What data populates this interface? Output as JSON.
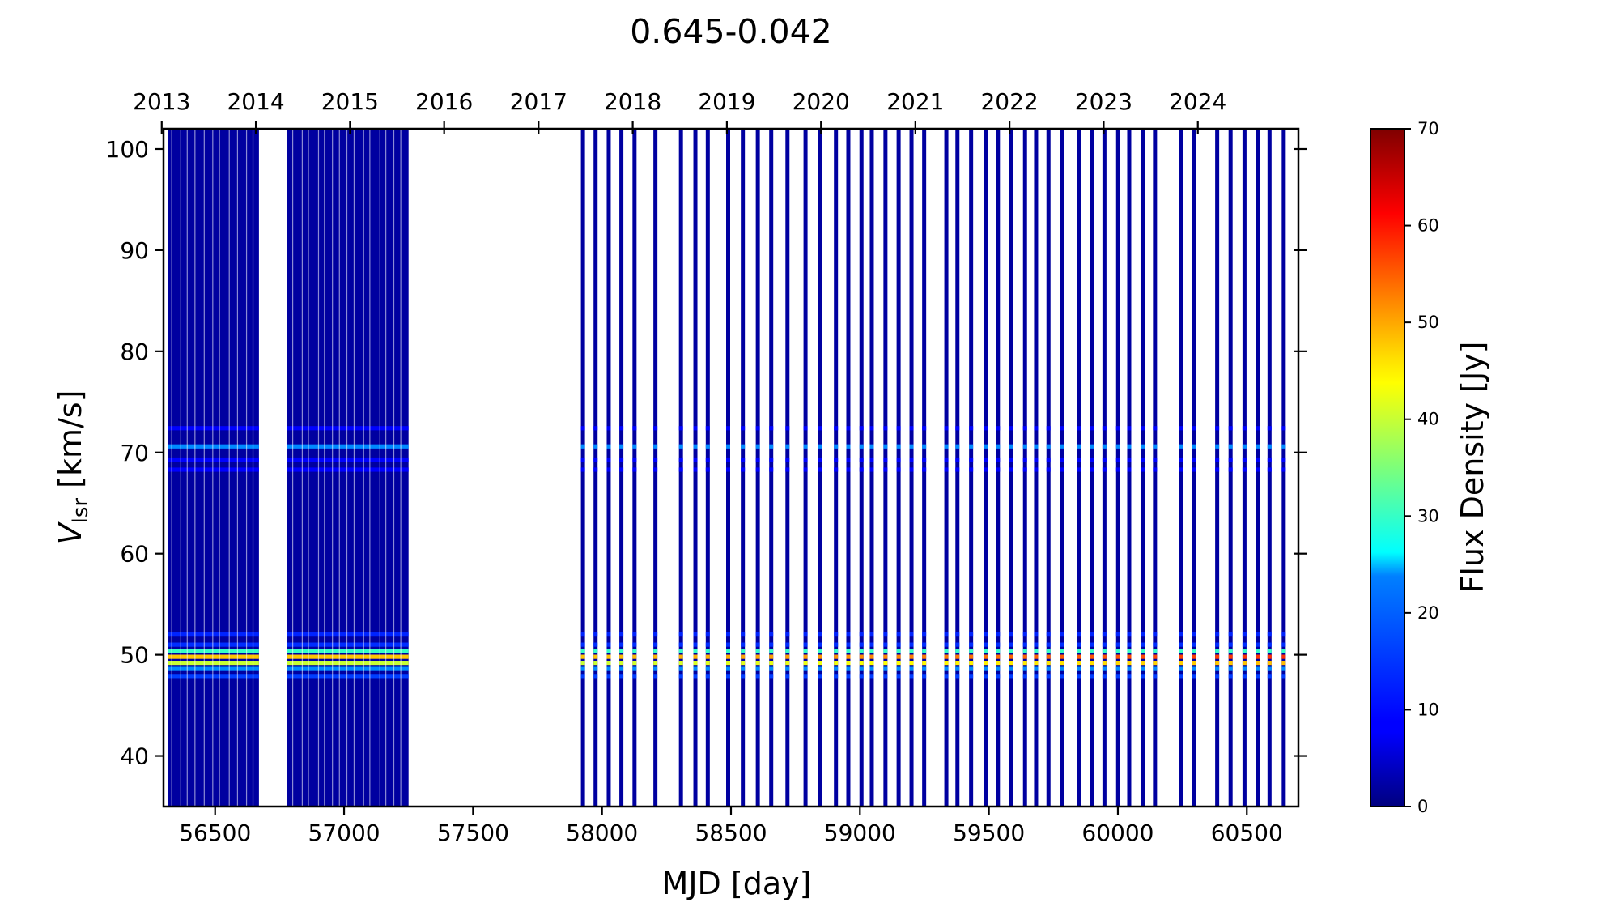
{
  "chart_data": {
    "type": "heatmap",
    "title": "0.645-0.042",
    "xlabel": "MJD [day]",
    "ylabel_main": "V",
    "ylabel_sub": "lsr",
    "ylabel_unit": " [km/s]",
    "colorbar_label": "Flux Density [Jy]",
    "colormap": "jet",
    "xlim": [
      56300,
      60700
    ],
    "ylim": [
      35,
      102
    ],
    "clim": [
      0,
      70
    ],
    "x_ticks": [
      56500,
      57000,
      57500,
      58000,
      58500,
      59000,
      59500,
      60000,
      60500
    ],
    "y_ticks": [
      40,
      50,
      60,
      70,
      80,
      90,
      100
    ],
    "colorbar_ticks": [
      0,
      10,
      20,
      30,
      40,
      50,
      60,
      70
    ],
    "top_axis": {
      "labels": [
        "2013",
        "2014",
        "2015",
        "2016",
        "2017",
        "2018",
        "2019",
        "2020",
        "2021",
        "2022",
        "2023",
        "2024"
      ],
      "mjd": [
        56293,
        56658,
        57023,
        57388,
        57754,
        58119,
        58484,
        58849,
        59215,
        59580,
        59945,
        60310
      ]
    },
    "dense_blocks": [
      {
        "start": 56318,
        "end": 56670
      },
      {
        "start": 56780,
        "end": 57250
      }
    ],
    "observation_epochs": [
      57926,
      57975,
      58026,
      58075,
      58126,
      58207,
      58306,
      58362,
      58410,
      58489,
      58546,
      58604,
      58656,
      58719,
      58789,
      58845,
      58907,
      58955,
      59006,
      59046,
      59099,
      59150,
      59200,
      59249,
      59335,
      59378,
      59431,
      59487,
      59535,
      59586,
      59640,
      59683,
      59731,
      59785,
      59849,
      59900,
      59948,
      60001,
      60044,
      60098,
      60144,
      60245,
      60296,
      60385,
      60437,
      60491,
      60542,
      60588,
      60643
    ],
    "spectral_features": [
      {
        "velocity": 47.9,
        "flux": 16
      },
      {
        "velocity": 48.6,
        "flux": 24
      },
      {
        "velocity": 49.2,
        "flux": 40
      },
      {
        "velocity": 49.8,
        "flux": 48
      },
      {
        "velocity": 50.4,
        "flux": 30
      },
      {
        "velocity": 51.0,
        "flux": 14
      },
      {
        "velocity": 52.0,
        "flux": 13
      },
      {
        "velocity": 68.3,
        "flux": 8
      },
      {
        "velocity": 69.3,
        "flux": 9
      },
      {
        "velocity": 70.6,
        "flux": 24
      },
      {
        "velocity": 72.4,
        "flux": 9
      }
    ],
    "background_flux": 2,
    "peak_flux": 63
  }
}
